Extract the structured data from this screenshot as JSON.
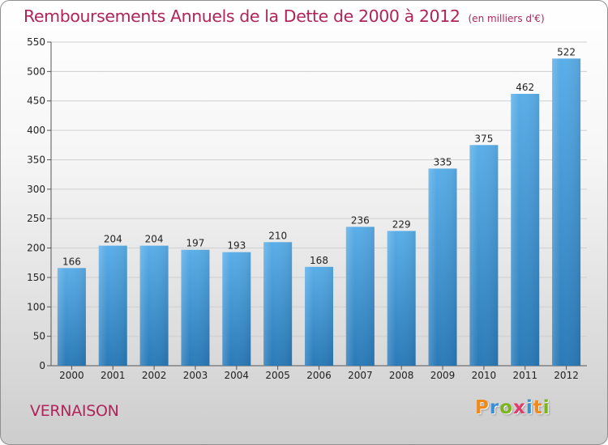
{
  "header": {
    "title": "Remboursements Annuels de la Dette de 2000 à 2012",
    "subtitle": "(en milliers d'€)"
  },
  "footer": {
    "place": "VERNAISON",
    "logo": {
      "p": "P",
      "r": "r",
      "o": "o",
      "x": "x",
      "i1": "i",
      "t": "t",
      "i2": "i"
    }
  },
  "colors": {
    "bar_top": "#5aaee8",
    "bar_bottom": "#2a7ab8",
    "title": "#b0245a"
  },
  "chart_data": {
    "type": "bar",
    "title": "Remboursements Annuels de la Dette de 2000 à 2012",
    "xlabel": "",
    "ylabel": "",
    "categories": [
      "2000",
      "2001",
      "2002",
      "2003",
      "2004",
      "2005",
      "2006",
      "2007",
      "2008",
      "2009",
      "2010",
      "2011",
      "2012"
    ],
    "values": [
      166,
      204,
      204,
      197,
      193,
      210,
      168,
      236,
      229,
      335,
      375,
      462,
      522
    ],
    "ylim": [
      0,
      550
    ],
    "yticks": [
      0,
      50,
      100,
      150,
      200,
      250,
      300,
      350,
      400,
      450,
      500,
      550
    ],
    "grid": true
  }
}
